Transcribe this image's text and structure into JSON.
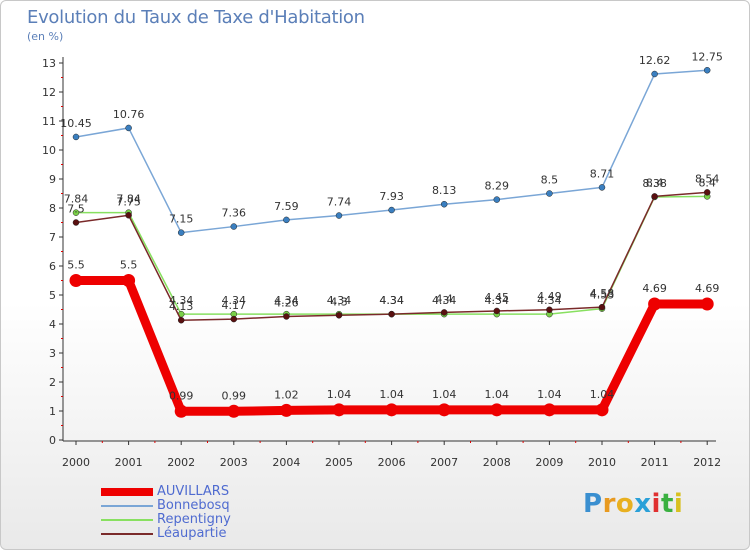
{
  "title": "Evolution du Taux de Taxe d'Habitation",
  "subtitle": "(en %)",
  "logo_text": "Proxiti",
  "chart_data": {
    "type": "line",
    "x": [
      "2000",
      "2001",
      "2002",
      "2003",
      "2004",
      "2005",
      "2006",
      "2007",
      "2008",
      "2009",
      "2010",
      "2011",
      "2012"
    ],
    "ylim": [
      0,
      13
    ],
    "yticks": [
      "0",
      "1",
      "2",
      "3",
      "4",
      "5",
      "6",
      "7",
      "8",
      "9",
      "10",
      "11",
      "12",
      "13"
    ],
    "grid": false,
    "legend_position": "bottom-left",
    "series": [
      {
        "name": "AUVILLARS",
        "color": "#ee0000",
        "values": [
          5.5,
          5.5,
          0.99,
          0.99,
          1.02,
          1.04,
          1.04,
          1.04,
          1.04,
          1.04,
          1.04,
          4.69,
          4.69
        ],
        "labels": [
          "5.5",
          "5.5",
          "0.99",
          "0.99",
          "1.02",
          "1.04",
          "1.04",
          "1.04",
          "1.04",
          "1.04",
          "1.04",
          "4.69",
          "4.69"
        ]
      },
      {
        "name": "Bonnebosq",
        "color": "#7aa6d6",
        "values": [
          10.45,
          10.76,
          7.15,
          7.36,
          7.59,
          7.74,
          7.93,
          8.13,
          8.29,
          8.5,
          8.71,
          12.62,
          12.75
        ],
        "labels": [
          "10.45",
          "10.76",
          "7.15",
          "7.36",
          "7.59",
          "7.74",
          "7.93",
          "8.13",
          "8.29",
          "8.5",
          "8.71",
          "12.62",
          "12.75"
        ]
      },
      {
        "name": "Repentigny",
        "color": "#88e060",
        "values": [
          7.84,
          7.84,
          4.34,
          4.34,
          4.34,
          4.34,
          4.34,
          4.34,
          4.34,
          4.34,
          4.53,
          8.38,
          8.4
        ],
        "labels": [
          "7.84",
          "7.84",
          "4.34",
          "4.34",
          "4.34",
          "4.34",
          "4.34",
          "4.34",
          "4.34",
          "4.34",
          "4.53",
          "8.38",
          "8.4"
        ]
      },
      {
        "name": "Léaupartie",
        "color": "#7a2a2a",
        "values": [
          7.5,
          7.75,
          4.13,
          4.17,
          4.26,
          4.3,
          4.34,
          4.4,
          4.45,
          4.49,
          4.58,
          8.4,
          8.54
        ],
        "labels": [
          "7.5",
          "7.75",
          "4.13",
          "4.17",
          "4.26",
          "4.3",
          "4.34",
          "4.4",
          "4.45",
          "4.49",
          "4.58",
          "8.4",
          "8.54"
        ]
      }
    ]
  }
}
